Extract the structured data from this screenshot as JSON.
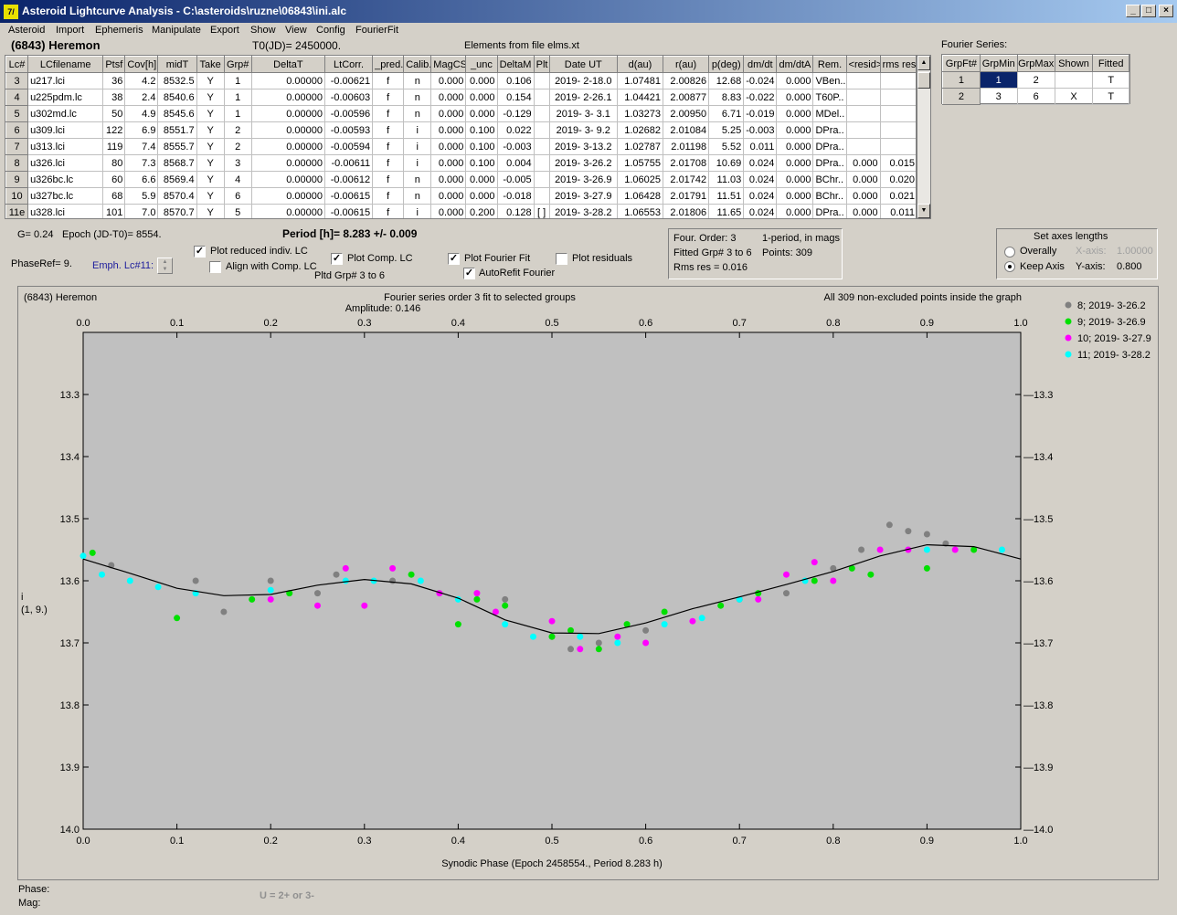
{
  "window": {
    "title": "Asteroid Lightcurve Analysis - C:\\asteroids\\ruzne\\06843\\ini.alc",
    "icon_label": "7/"
  },
  "menu": [
    "Asteroid",
    "Import",
    "Ephemeris",
    "Manipulate",
    "Export",
    "Show",
    "View",
    "Config",
    "FourierFit"
  ],
  "header": {
    "asteroid": "(6843) Heremon",
    "t0": "T0(JD)= 2450000.",
    "elements": "Elements from file elms.xt"
  },
  "grid": {
    "columns": [
      "Lc#",
      "LCfilename",
      "Ptsf",
      "Cov[h]",
      "midT",
      "Take",
      "Grp#",
      "DeltaT",
      "LtCorr.",
      "_pred.",
      "Calib.",
      "MagCS",
      "_unc",
      "DeltaM",
      "Plt",
      "Date UT",
      "d(au)",
      "r(au)",
      "p(deg)",
      "dm/dt",
      "dm/dtA",
      "Rem.",
      "<resid>",
      "rms res"
    ],
    "rows": [
      [
        "3",
        "u217.lci",
        "36",
        "4.2",
        "8532.5",
        "Y",
        "1",
        "0.00000",
        "-0.00621",
        "f",
        "n",
        "0.000",
        "0.000",
        "0.106",
        "",
        "2019- 2-18.0",
        "1.07481",
        "2.00826",
        "12.68",
        "-0.024",
        "0.000",
        "VBen..",
        "",
        ""
      ],
      [
        "4",
        "u225pdm.lc",
        "38",
        "2.4",
        "8540.6",
        "Y",
        "1",
        "0.00000",
        "-0.00603",
        "f",
        "n",
        "0.000",
        "0.000",
        "0.154",
        "",
        "2019- 2-26.1",
        "1.04421",
        "2.00877",
        "8.83",
        "-0.022",
        "0.000",
        "T60P..",
        "",
        ""
      ],
      [
        "5",
        "u302md.lc",
        "50",
        "4.9",
        "8545.6",
        "Y",
        "1",
        "0.00000",
        "-0.00596",
        "f",
        "n",
        "0.000",
        "0.000",
        "-0.129",
        "",
        "2019- 3- 3.1",
        "1.03273",
        "2.00950",
        "6.71",
        "-0.019",
        "0.000",
        "MDel..",
        "",
        ""
      ],
      [
        "6",
        "u309.lci",
        "122",
        "6.9",
        "8551.7",
        "Y",
        "2",
        "0.00000",
        "-0.00593",
        "f",
        "i",
        "0.000",
        "0.100",
        "0.022",
        "",
        "2019- 3- 9.2",
        "1.02682",
        "2.01084",
        "5.25",
        "-0.003",
        "0.000",
        "DPra..",
        "",
        ""
      ],
      [
        "7",
        "u313.lci",
        "119",
        "7.4",
        "8555.7",
        "Y",
        "2",
        "0.00000",
        "-0.00594",
        "f",
        "i",
        "0.000",
        "0.100",
        "-0.003",
        "",
        "2019- 3-13.2",
        "1.02787",
        "2.01198",
        "5.52",
        "0.011",
        "0.000",
        "DPra..",
        "",
        ""
      ],
      [
        "8",
        "u326.lci",
        "80",
        "7.3",
        "8568.7",
        "Y",
        "3",
        "0.00000",
        "-0.00611",
        "f",
        "i",
        "0.000",
        "0.100",
        "0.004",
        "",
        "2019- 3-26.2",
        "1.05755",
        "2.01708",
        "10.69",
        "0.024",
        "0.000",
        "DPra..",
        "0.000",
        "0.015"
      ],
      [
        "9",
        "u326bc.lc",
        "60",
        "6.6",
        "8569.4",
        "Y",
        "4",
        "0.00000",
        "-0.00612",
        "f",
        "n",
        "0.000",
        "0.000",
        "-0.005",
        "",
        "2019- 3-26.9",
        "1.06025",
        "2.01742",
        "11.03",
        "0.024",
        "0.000",
        "BChr..",
        "0.000",
        "0.020"
      ],
      [
        "10",
        "u327bc.lc",
        "68",
        "5.9",
        "8570.4",
        "Y",
        "6",
        "0.00000",
        "-0.00615",
        "f",
        "n",
        "0.000",
        "0.000",
        "-0.018",
        "",
        "2019- 3-27.9",
        "1.06428",
        "2.01791",
        "11.51",
        "0.024",
        "0.000",
        "BChr..",
        "0.000",
        "0.021"
      ],
      [
        "11e",
        "u328.lci",
        "101",
        "7.0",
        "8570.7",
        "Y",
        "5",
        "0.00000",
        "-0.00615",
        "f",
        "i",
        "0.000",
        "0.200",
        "0.128",
        "[ ]",
        "2019- 3-28.2",
        "1.06553",
        "2.01806",
        "11.65",
        "0.024",
        "0.000",
        "DPra..",
        "0.000",
        "0.011"
      ]
    ]
  },
  "fourier_table": {
    "title": "Fourier Series:",
    "columns": [
      "GrpFt#",
      "GrpMin",
      "GrpMax",
      "Shown",
      "Fitted"
    ],
    "rows": [
      [
        "1",
        "1",
        "2",
        "",
        "T"
      ],
      [
        "2",
        "3",
        "6",
        "X",
        "T"
      ]
    ]
  },
  "info": {
    "g": "G= 0.24",
    "epoch": "Epoch (JD-T0)= 8554.",
    "period": "Period [h]= 8.283 +/- 0.009",
    "phaseref": "PhaseRef= 9.",
    "emph": "Emph. Lc#11:",
    "pltd": "Pltd Grp#  3  to   6"
  },
  "checks": {
    "reduced": "Plot reduced indiv. LC",
    "align": "Align with Comp. LC",
    "comp": "Plot Comp. LC",
    "fourier": "Plot Fourier Fit",
    "autorefit": "AutoRefit Fourier",
    "residuals": "Plot residuals"
  },
  "check_states": {
    "reduced": true,
    "align": false,
    "comp": true,
    "fourier": true,
    "autorefit": true,
    "residuals": false
  },
  "fitinfo": {
    "order": "Four. Order:  3",
    "mode": "1-period, in mags",
    "fitted": "Fitted Grp# 3 to 6",
    "points": "Points: 309",
    "rms": "Rms res     = 0.016"
  },
  "axes_box": {
    "title": "Set axes lengths",
    "overally": "Overally",
    "keep": "Keep Axis",
    "xaxis_label": "X-axis:",
    "xaxis_value": "1.00000",
    "yaxis_label": "Y-axis:",
    "yaxis_value": "0.800",
    "selected": "keep"
  },
  "chart_data": {
    "type": "scatter",
    "title_left": "(6843) Heremon",
    "title_center": "Fourier series order 3 fit to selected groups",
    "amplitude": "Amplitude: 0.146",
    "title_right": "All 309 non-excluded points inside the graph",
    "xlabel": "Synodic Phase (Epoch 2458554., Period 8.283 h)",
    "ylabel": "i",
    "ylabel2": "(1, 9.)",
    "xlim": [
      0,
      1
    ],
    "ylim": [
      14.0,
      13.2
    ],
    "xticks": [
      "0.0",
      "0.1",
      "0.2",
      "0.3",
      "0.4",
      "0.5",
      "0.6",
      "0.7",
      "0.8",
      "0.9",
      "1.0"
    ],
    "yticks": [
      "13.3",
      "13.4",
      "13.5",
      "13.6",
      "13.7",
      "13.8",
      "13.9",
      "14.0"
    ],
    "fit_curve": {
      "x": [
        0,
        0.05,
        0.1,
        0.15,
        0.2,
        0.25,
        0.3,
        0.35,
        0.4,
        0.45,
        0.5,
        0.55,
        0.6,
        0.65,
        0.7,
        0.75,
        0.8,
        0.85,
        0.9,
        0.95,
        1.0
      ],
      "y": [
        13.565,
        13.588,
        13.612,
        13.624,
        13.622,
        13.607,
        13.598,
        13.605,
        13.628,
        13.663,
        13.684,
        13.685,
        13.668,
        13.645,
        13.626,
        13.606,
        13.585,
        13.56,
        13.542,
        13.545,
        13.565
      ]
    },
    "series": [
      {
        "name": "8; 2019- 3-26.2",
        "color": "#808080",
        "points": [
          [
            0.03,
            13.575
          ],
          [
            0.12,
            13.6
          ],
          [
            0.2,
            13.6
          ],
          [
            0.25,
            13.62
          ],
          [
            0.27,
            13.59
          ],
          [
            0.33,
            13.6
          ],
          [
            0.45,
            13.63
          ],
          [
            0.5,
            13.69
          ],
          [
            0.52,
            13.71
          ],
          [
            0.55,
            13.7
          ],
          [
            0.6,
            13.68
          ],
          [
            0.7,
            13.63
          ],
          [
            0.75,
            13.62
          ],
          [
            0.8,
            13.58
          ],
          [
            0.83,
            13.55
          ],
          [
            0.86,
            13.51
          ],
          [
            0.88,
            13.52
          ],
          [
            0.9,
            13.525
          ],
          [
            0.92,
            13.54
          ],
          [
            0.15,
            13.65
          ]
        ]
      },
      {
        "name": "9; 2019- 3-26.9",
        "color": "#00e000",
        "points": [
          [
            0.01,
            13.555
          ],
          [
            0.1,
            13.66
          ],
          [
            0.18,
            13.63
          ],
          [
            0.22,
            13.62
          ],
          [
            0.35,
            13.59
          ],
          [
            0.42,
            13.63
          ],
          [
            0.45,
            13.64
          ],
          [
            0.5,
            13.69
          ],
          [
            0.52,
            13.68
          ],
          [
            0.55,
            13.71
          ],
          [
            0.58,
            13.67
          ],
          [
            0.62,
            13.65
          ],
          [
            0.68,
            13.64
          ],
          [
            0.72,
            13.62
          ],
          [
            0.78,
            13.6
          ],
          [
            0.82,
            13.58
          ],
          [
            0.84,
            13.59
          ],
          [
            0.9,
            13.58
          ],
          [
            0.95,
            13.55
          ],
          [
            0.4,
            13.67
          ]
        ]
      },
      {
        "name": "10; 2019- 3-27.9",
        "color": "#ff00ff",
        "points": [
          [
            0.2,
            13.63
          ],
          [
            0.25,
            13.64
          ],
          [
            0.28,
            13.58
          ],
          [
            0.3,
            13.64
          ],
          [
            0.33,
            13.58
          ],
          [
            0.38,
            13.62
          ],
          [
            0.42,
            13.62
          ],
          [
            0.44,
            13.65
          ],
          [
            0.5,
            13.665
          ],
          [
            0.53,
            13.71
          ],
          [
            0.57,
            13.69
          ],
          [
            0.6,
            13.7
          ],
          [
            0.65,
            13.665
          ],
          [
            0.72,
            13.63
          ],
          [
            0.75,
            13.59
          ],
          [
            0.78,
            13.57
          ],
          [
            0.8,
            13.6
          ],
          [
            0.85,
            13.55
          ],
          [
            0.88,
            13.55
          ],
          [
            0.93,
            13.55
          ]
        ]
      },
      {
        "name": "11; 2019- 3-28.2",
        "color": "#00ffff",
        "points": [
          [
            0.0,
            13.56
          ],
          [
            0.02,
            13.59
          ],
          [
            0.05,
            13.6
          ],
          [
            0.08,
            13.61
          ],
          [
            0.12,
            13.62
          ],
          [
            0.2,
            13.615
          ],
          [
            0.28,
            13.6
          ],
          [
            0.31,
            13.6
          ],
          [
            0.36,
            13.6
          ],
          [
            0.4,
            13.63
          ],
          [
            0.45,
            13.67
          ],
          [
            0.48,
            13.69
          ],
          [
            0.53,
            13.69
          ],
          [
            0.57,
            13.7
          ],
          [
            0.62,
            13.67
          ],
          [
            0.66,
            13.66
          ],
          [
            0.7,
            13.63
          ],
          [
            0.77,
            13.6
          ],
          [
            0.9,
            13.55
          ],
          [
            0.98,
            13.55
          ]
        ]
      }
    ]
  },
  "status": {
    "phase": "Phase:",
    "mag": "Mag:",
    "hint": "U = 2+ or 3-"
  }
}
